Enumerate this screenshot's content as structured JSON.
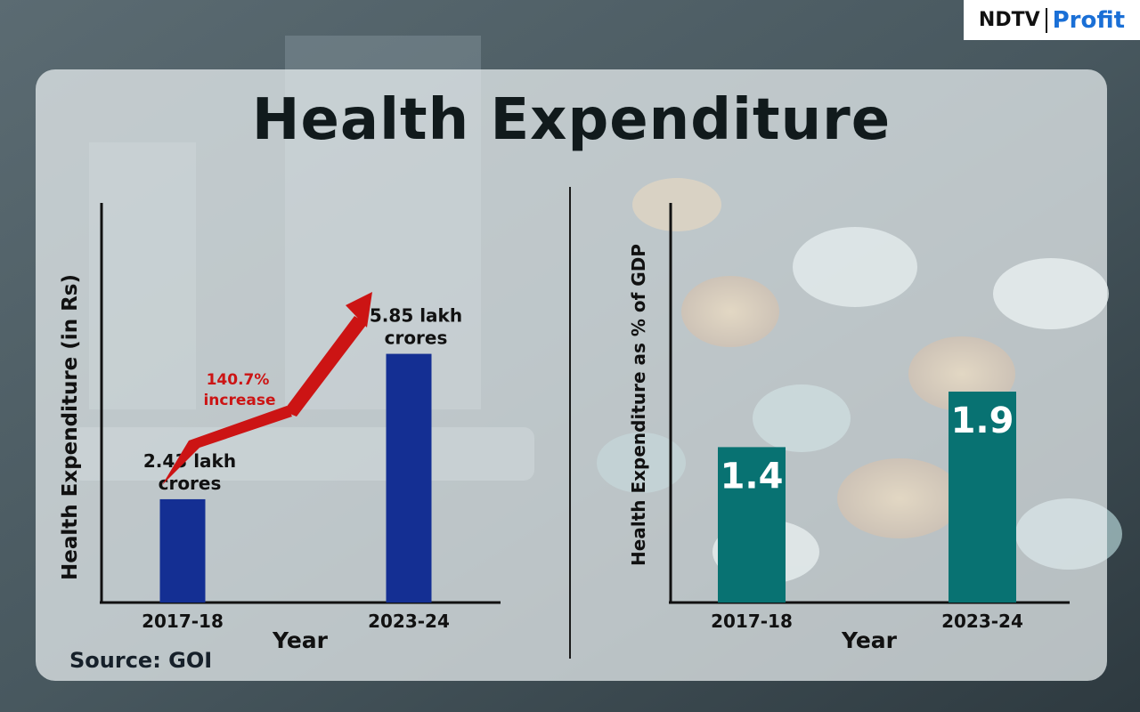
{
  "title": "Health Expenditure",
  "source": "Source: GOI",
  "logo": {
    "brand": "NDTV",
    "product": "Profit"
  },
  "colors": {
    "left_bar": "#142f93",
    "right_bar": "#087272",
    "arrow": "#cc1414",
    "text": "#111a1c"
  },
  "chart_data": [
    {
      "type": "bar",
      "categories": [
        "2017-18",
        "2023-24"
      ],
      "values": [
        2.43,
        5.85
      ],
      "data_labels": [
        [
          "2.43 lakh",
          "crores"
        ],
        [
          "5.85 lakh",
          "crores"
        ]
      ],
      "xlabel": "Year",
      "ylabel": "Health Expenditure (in Rs)",
      "ylim": [
        0,
        9.4
      ],
      "annotation": [
        "140.7%",
        "increase"
      ],
      "grid": false
    },
    {
      "type": "bar",
      "categories": [
        "2017-18",
        "2023-24"
      ],
      "values": [
        1.4,
        1.9
      ],
      "data_labels": [
        "1.4",
        "1.9"
      ],
      "xlabel": "Year",
      "ylabel": "Health Expenditure as % of GDP",
      "ylim": [
        0,
        3.6
      ],
      "grid": false
    }
  ]
}
